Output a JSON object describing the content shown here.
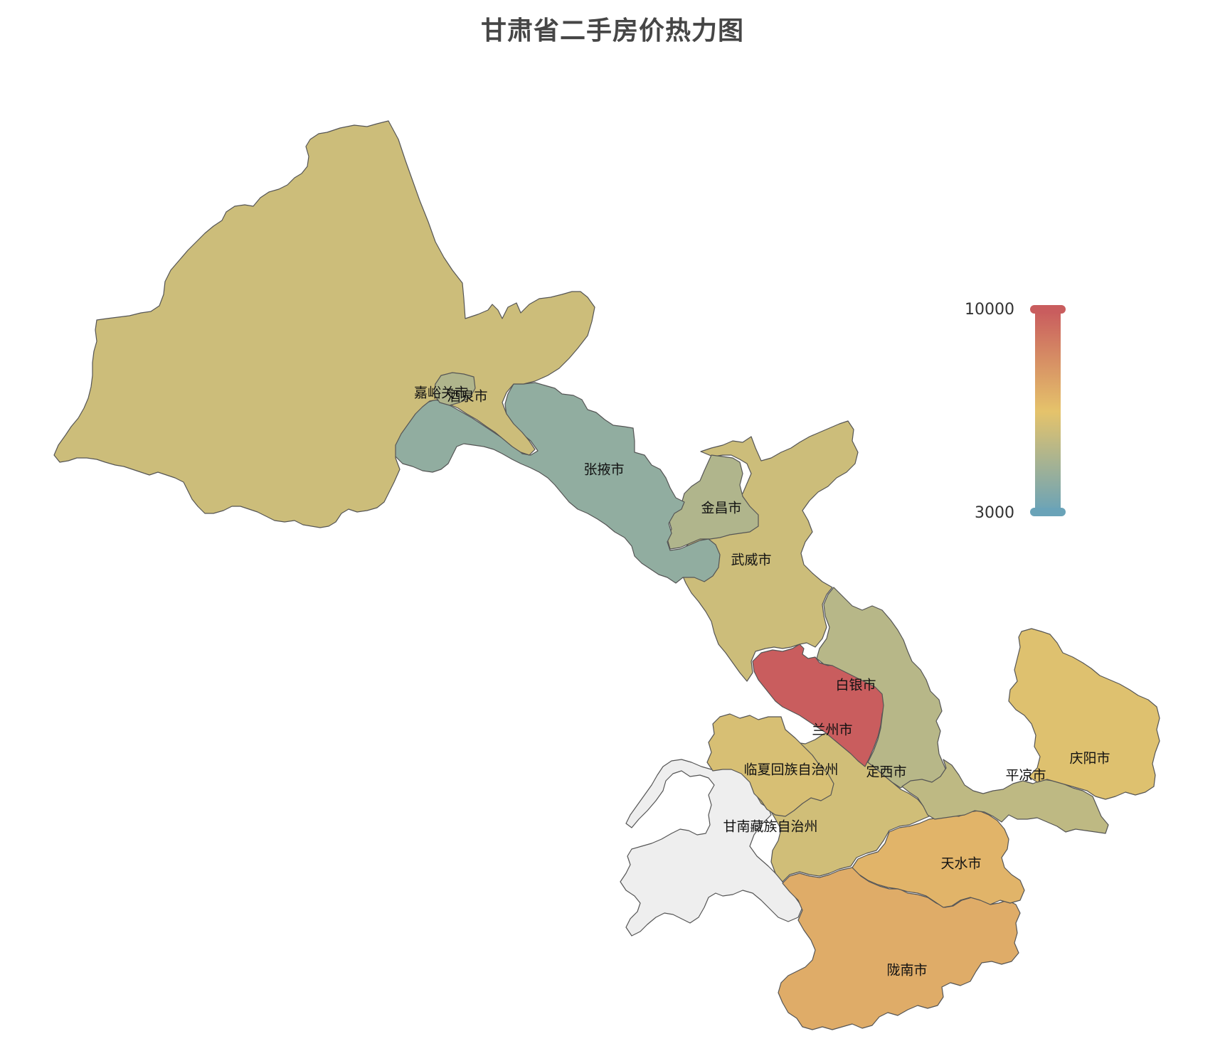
{
  "title": "甘肃省二手房价热力图",
  "visual_map": {
    "min": 3000,
    "max": 10000,
    "max_label": "10000",
    "min_label": "3000",
    "colors": [
      "#6aa3b8",
      "#e5c36b",
      "#c95d5e"
    ]
  },
  "no_data_color": "#eeeeee",
  "regions": [
    {
      "name": "酒泉市",
      "label": "酒泉市",
      "value": 5800
    },
    {
      "name": "嘉峪关市",
      "label": "嘉峪关市",
      "value": 5000
    },
    {
      "name": "张掖市",
      "label": "张掖市",
      "value": 4100
    },
    {
      "name": "金昌市",
      "label": "金昌市",
      "value": 5000
    },
    {
      "name": "武威市",
      "label": "武威市",
      "value": 5800
    },
    {
      "name": "白银市",
      "label": "白银市",
      "value": 5200
    },
    {
      "name": "兰州市",
      "label": "兰州市",
      "value": 10000
    },
    {
      "name": "临夏回族自治州",
      "label": "临夏回族自治州",
      "value": 6100
    },
    {
      "name": "定西市",
      "label": "定西市",
      "value": 5900
    },
    {
      "name": "甘南藏族自治州",
      "label": "甘南藏族自治州",
      "value": null
    },
    {
      "name": "平凉市",
      "label": "平凉市",
      "value": 5400
    },
    {
      "name": "庆阳市",
      "label": "庆阳市",
      "value": 6300
    },
    {
      "name": "天水市",
      "label": "天水市",
      "value": 7000
    },
    {
      "name": "陇南市",
      "label": "陇南市",
      "value": 7300
    }
  ]
}
